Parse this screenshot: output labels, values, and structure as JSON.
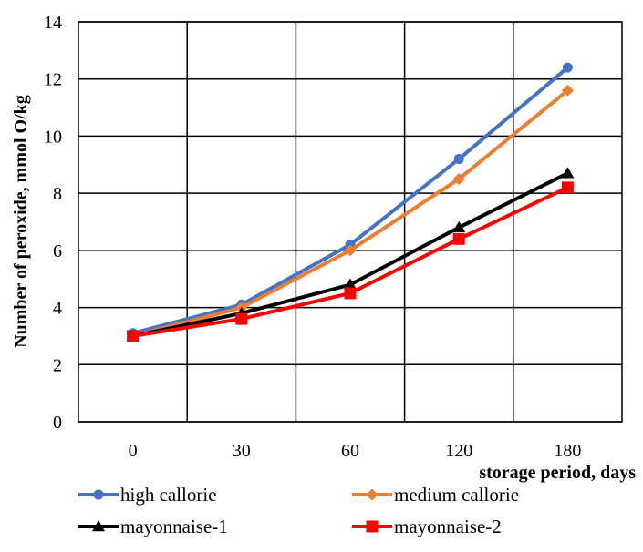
{
  "chart_data": {
    "type": "line",
    "title": "",
    "xlabel": "storage period, days",
    "ylabel": "Number of peroxide, mmol O/kg",
    "categories": [
      "0",
      "30",
      "60",
      "120",
      "180"
    ],
    "ylim": [
      0,
      14
    ],
    "y_ticks": [
      "0",
      "2",
      "4",
      "6",
      "8",
      "10",
      "12",
      "14"
    ],
    "grid": true,
    "legend_position": "bottom",
    "series": [
      {
        "name": "high callorie",
        "color": "#4472C4",
        "marker": "circle",
        "values": [
          3.1,
          4.1,
          6.2,
          9.2,
          12.4
        ]
      },
      {
        "name": "medium callorie",
        "color": "#ED7D31",
        "marker": "diamond",
        "values": [
          3.0,
          4.0,
          6.0,
          8.5,
          11.6
        ]
      },
      {
        "name": "mayonnaise-1",
        "color": "#000000",
        "marker": "triangle",
        "values": [
          3.0,
          3.8,
          4.8,
          6.8,
          8.7
        ]
      },
      {
        "name": "mayonnaise-2",
        "color": "#FF0000",
        "marker": "square",
        "values": [
          3.0,
          3.6,
          4.5,
          6.4,
          8.2
        ]
      }
    ]
  }
}
